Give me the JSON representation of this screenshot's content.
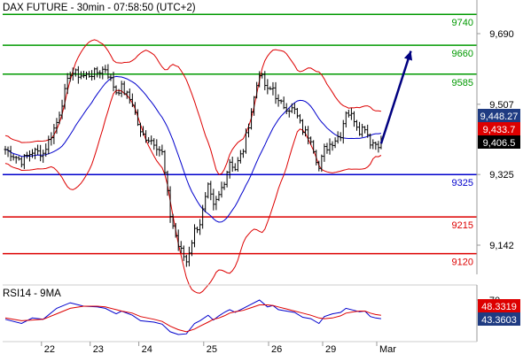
{
  "header": {
    "title": "DAX FUTURE - 30min - 07:58:50 (UTC+2)"
  },
  "colors": {
    "price": "#000000",
    "band": "#dd0000",
    "ma": "#0000cc",
    "support": "#0000cc",
    "resistance": "#009900",
    "target": "#dd0000",
    "arrow": "#000080",
    "rsi": "#0000cc",
    "rsi_ma": "#dd0000",
    "badge_dark": "#1f3b82",
    "badge_red": "#dd0000",
    "badge_black": "#000000",
    "axis": "#999999"
  },
  "chart_data": [
    {
      "type": "line",
      "title": "DAX FUTURE - 30min - 07:58:50 (UTC+2)",
      "xlabel": "",
      "ylabel": "",
      "x_ticks": [
        "22",
        "23",
        "24",
        "25",
        "26",
        "29",
        "Mar"
      ],
      "y_ticks": [
        "9,690",
        "9,507",
        "9,325",
        "9,142"
      ],
      "ylim": [
        9020,
        9800
      ],
      "grid": false,
      "bars_count": 140,
      "price_path_bars": [
        0,
        6,
        10,
        14,
        19,
        24,
        29,
        34,
        37,
        41,
        43,
        47,
        50,
        55,
        58,
        61,
        64,
        67,
        70,
        72,
        75,
        77,
        79,
        81,
        83,
        85,
        88,
        91,
        94,
        97,
        99,
        101,
        104,
        107,
        110,
        113,
        116,
        118,
        121,
        124,
        126,
        129,
        131,
        133,
        135,
        137,
        139
      ],
      "price_path_values": [
        9390,
        9360,
        9385,
        9380,
        9460,
        9590,
        9580,
        9590,
        9600,
        9540,
        9550,
        9510,
        9430,
        9410,
        9380,
        9220,
        9140,
        9100,
        9180,
        9200,
        9290,
        9240,
        9270,
        9310,
        9360,
        9340,
        9390,
        9490,
        9590,
        9540,
        9550,
        9510,
        9500,
        9490,
        9440,
        9420,
        9340,
        9390,
        9410,
        9430,
        9490,
        9470,
        9440,
        9450,
        9410,
        9405,
        9406
      ],
      "levels": [
        {
          "value": 9740,
          "label": "9740",
          "kind": "resistance"
        },
        {
          "value": 9660,
          "label": "9660",
          "kind": "resistance"
        },
        {
          "value": 9585,
          "label": "9585",
          "kind": "resistance"
        },
        {
          "value": 9325,
          "label": "9325",
          "kind": "support"
        },
        {
          "value": 9215,
          "label": "9215",
          "kind": "target"
        },
        {
          "value": 9120,
          "label": "9120",
          "kind": "target"
        }
      ],
      "last_values": [
        {
          "value": 9448.27,
          "label": "9,448.27",
          "style": "badge_dark"
        },
        {
          "value": 9433.7,
          "label": "9,433.7",
          "style": "badge_red"
        },
        {
          "value": 9406.5,
          "label": "9,406.5",
          "style": "badge_black"
        }
      ],
      "forecast_arrow": {
        "from_bar": 139,
        "from_value": 9405,
        "to_bar": 150,
        "to_value": 9645
      }
    },
    {
      "type": "line",
      "title": "RSI14 - 9MA",
      "ylim": [
        0,
        100
      ],
      "y_ticks": [
        "70"
      ],
      "series": [
        {
          "name": "RSI14",
          "x": [
            0,
            6,
            10,
            14,
            19,
            24,
            29,
            34,
            37,
            41,
            43,
            47,
            50,
            55,
            58,
            61,
            64,
            67,
            70,
            72,
            75,
            77,
            79,
            81,
            83,
            85,
            88,
            91,
            94,
            97,
            99,
            101,
            104,
            107,
            110,
            113,
            116,
            118,
            121,
            124,
            126,
            129,
            131,
            133,
            135,
            137,
            139
          ],
          "values": [
            42,
            36,
            44,
            42,
            58,
            66,
            61,
            60,
            58,
            50,
            54,
            48,
            40,
            38,
            35,
            24,
            20,
            21,
            36,
            40,
            48,
            41,
            47,
            52,
            56,
            52,
            58,
            64,
            70,
            60,
            62,
            56,
            54,
            52,
            45,
            43,
            36,
            46,
            50,
            52,
            58,
            55,
            53,
            54,
            46,
            44,
            43
          ]
        },
        {
          "name": "9MA",
          "x": [
            0,
            6,
            10,
            14,
            19,
            24,
            29,
            34,
            37,
            41,
            43,
            47,
            50,
            55,
            58,
            61,
            64,
            67,
            70,
            72,
            75,
            77,
            79,
            81,
            83,
            85,
            88,
            91,
            94,
            97,
            99,
            101,
            104,
            107,
            110,
            113,
            116,
            118,
            121,
            124,
            126,
            129,
            131,
            133,
            135,
            137,
            139
          ],
          "values": [
            44,
            40,
            41,
            42,
            50,
            58,
            61,
            61,
            60,
            56,
            54,
            51,
            46,
            42,
            39,
            32,
            27,
            24,
            28,
            32,
            38,
            42,
            44,
            47,
            51,
            53,
            55,
            59,
            63,
            63,
            62,
            60,
            57,
            54,
            51,
            48,
            44,
            43,
            44,
            47,
            51,
            53,
            54,
            54,
            51,
            49,
            48
          ]
        }
      ],
      "last_values": [
        {
          "value": 48.3319,
          "label": "48.3319",
          "style": "badge_red"
        },
        {
          "value": 43.3603,
          "label": "43.3603",
          "style": "badge_dark"
        }
      ]
    }
  ]
}
